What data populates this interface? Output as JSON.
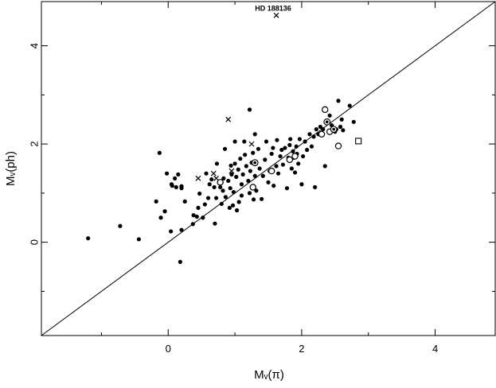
{
  "chart_data": {
    "type": "scatter",
    "title": "",
    "xlabel": "Mᵥ(π)",
    "ylabel": "Mᵥ(ph)",
    "xlim": [
      -1.9,
      4.9
    ],
    "ylim": [
      -1.9,
      4.9
    ],
    "x_ticks": [
      0,
      2,
      4
    ],
    "y_ticks": [
      0,
      2,
      4
    ],
    "x_tick_labels": [
      "0",
      "2",
      "4"
    ],
    "y_tick_labels": [
      "0",
      "2",
      "4"
    ],
    "grid": false,
    "reference_line": {
      "x": [
        -1.9,
        4.9
      ],
      "y": [
        -1.9,
        4.9
      ]
    },
    "annotation": {
      "text": "HD 188136",
      "x": 1.62,
      "y": 4.62
    },
    "series": [
      {
        "marker": "filled-circle",
        "points": [
          [
            -1.2,
            0.08
          ],
          [
            -0.72,
            0.33
          ],
          [
            -0.44,
            0.06
          ],
          [
            -0.18,
            0.83
          ],
          [
            -0.13,
            1.82
          ],
          [
            -0.11,
            0.5
          ],
          [
            -0.05,
            0.63
          ],
          [
            -0.02,
            1.4
          ],
          [
            0.05,
            1.18
          ],
          [
            0.06,
            1.15
          ],
          [
            0.1,
            1.3
          ],
          [
            0.12,
            1.12
          ],
          [
            0.15,
            1.38
          ],
          [
            0.2,
            1.1
          ],
          [
            0.2,
            1.14
          ],
          [
            0.25,
            0.83
          ],
          [
            0.04,
            0.22
          ],
          [
            0.2,
            0.25
          ],
          [
            0.18,
            -0.4
          ],
          [
            0.37,
            0.37
          ],
          [
            0.38,
            0.55
          ],
          [
            0.43,
            0.52
          ],
          [
            0.45,
            0.7
          ],
          [
            0.47,
            0.99
          ],
          [
            0.52,
            0.5
          ],
          [
            0.55,
            0.77
          ],
          [
            0.57,
            1.4
          ],
          [
            0.6,
            0.9
          ],
          [
            0.62,
            1.18
          ],
          [
            0.65,
            1.28
          ],
          [
            0.69,
            1.12
          ],
          [
            0.7,
            0.38
          ],
          [
            0.72,
            0.9
          ],
          [
            0.73,
            1.6
          ],
          [
            0.78,
            1.12
          ],
          [
            0.8,
            1.22
          ],
          [
            0.8,
            0.78
          ],
          [
            0.82,
            1.05
          ],
          [
            0.83,
            1.3
          ],
          [
            0.85,
            1.9
          ],
          [
            0.86,
            0.92
          ],
          [
            0.9,
            1.25
          ],
          [
            0.92,
            0.7
          ],
          [
            0.93,
            1.1
          ],
          [
            0.94,
            1.56
          ],
          [
            0.95,
            1.38
          ],
          [
            0.97,
            0.75
          ],
          [
            0.98,
            1.02
          ],
          [
            1.0,
            2.05
          ],
          [
            1.0,
            1.6
          ],
          [
            1.02,
            1.33
          ],
          [
            1.03,
            0.65
          ],
          [
            1.05,
            1.48
          ],
          [
            1.06,
            0.82
          ],
          [
            1.08,
            1.7
          ],
          [
            1.1,
            1.18
          ],
          [
            1.1,
            0.95
          ],
          [
            1.12,
            1.38
          ],
          [
            1.14,
            2.05
          ],
          [
            1.15,
            1.78
          ],
          [
            1.17,
            1.55
          ],
          [
            1.2,
            1.25
          ],
          [
            1.22,
            1.0
          ],
          [
            1.22,
            2.7
          ],
          [
            1.23,
            1.45
          ],
          [
            1.25,
            1.62
          ],
          [
            1.27,
            1.82
          ],
          [
            1.28,
            0.87
          ],
          [
            1.3,
            1.35
          ],
          [
            1.3,
            2.2
          ],
          [
            1.32,
            1.05
          ],
          [
            1.35,
            1.9
          ],
          [
            1.37,
            1.5
          ],
          [
            1.4,
            0.88
          ],
          [
            1.42,
            1.35
          ],
          [
            1.45,
            1.68
          ],
          [
            1.47,
            2.05
          ],
          [
            1.5,
            1.22
          ],
          [
            1.52,
            1.45
          ],
          [
            1.55,
            1.8
          ],
          [
            1.57,
            1.92
          ],
          [
            1.58,
            1.15
          ],
          [
            1.62,
            1.55
          ],
          [
            1.63,
            2.08
          ],
          [
            1.65,
            1.4
          ],
          [
            1.68,
            1.75
          ],
          [
            1.7,
            1.88
          ],
          [
            1.72,
            1.58
          ],
          [
            1.75,
            1.92
          ],
          [
            1.78,
            1.1
          ],
          [
            1.8,
            1.72
          ],
          [
            1.82,
            1.98
          ],
          [
            1.83,
            2.1
          ],
          [
            1.85,
            1.5
          ],
          [
            1.87,
            1.85
          ],
          [
            1.88,
            1.72
          ],
          [
            1.9,
            1.42
          ],
          [
            1.92,
            1.95
          ],
          [
            1.93,
            1.8
          ],
          [
            1.95,
            1.6
          ],
          [
            1.97,
            2.1
          ],
          [
            2.0,
            1.18
          ],
          [
            2.02,
            1.75
          ],
          [
            2.05,
            2.05
          ],
          [
            2.08,
            1.88
          ],
          [
            2.12,
            2.2
          ],
          [
            2.15,
            1.95
          ],
          [
            2.18,
            2.15
          ],
          [
            2.2,
            1.12
          ],
          [
            2.22,
            2.3
          ],
          [
            2.25,
            2.2
          ],
          [
            2.28,
            2.35
          ],
          [
            2.3,
            2.18
          ],
          [
            2.32,
            2.3
          ],
          [
            2.35,
            1.55
          ],
          [
            2.38,
            2.45
          ],
          [
            2.42,
            2.58
          ],
          [
            2.45,
            2.38
          ],
          [
            2.5,
            2.25
          ],
          [
            2.52,
            2.3
          ],
          [
            2.55,
            2.88
          ],
          [
            2.58,
            2.35
          ],
          [
            2.6,
            2.5
          ],
          [
            2.62,
            2.28
          ],
          [
            2.72,
            2.78
          ],
          [
            2.78,
            2.45
          ]
        ]
      },
      {
        "marker": "open-circle",
        "points": [
          [
            0.78,
            1.22
          ],
          [
            1.27,
            1.12
          ],
          [
            1.55,
            1.45
          ],
          [
            1.82,
            1.68
          ],
          [
            1.9,
            1.75
          ],
          [
            2.3,
            2.2
          ],
          [
            2.35,
            2.7
          ],
          [
            2.42,
            2.25
          ],
          [
            2.55,
            1.96
          ]
        ]
      },
      {
        "marker": "dotted-circle",
        "points": [
          [
            1.3,
            1.62
          ],
          [
            2.38,
            2.45
          ],
          [
            2.48,
            2.3
          ]
        ]
      },
      {
        "marker": "cross",
        "points": [
          [
            0.45,
            1.3
          ],
          [
            0.68,
            1.4
          ],
          [
            0.72,
            1.3
          ],
          [
            0.9,
            2.5
          ],
          [
            0.95,
            1.45
          ],
          [
            1.25,
            2.0
          ],
          [
            1.62,
            4.62
          ]
        ]
      },
      {
        "marker": "open-square",
        "points": [
          [
            2.85,
            2.06
          ]
        ]
      }
    ]
  }
}
